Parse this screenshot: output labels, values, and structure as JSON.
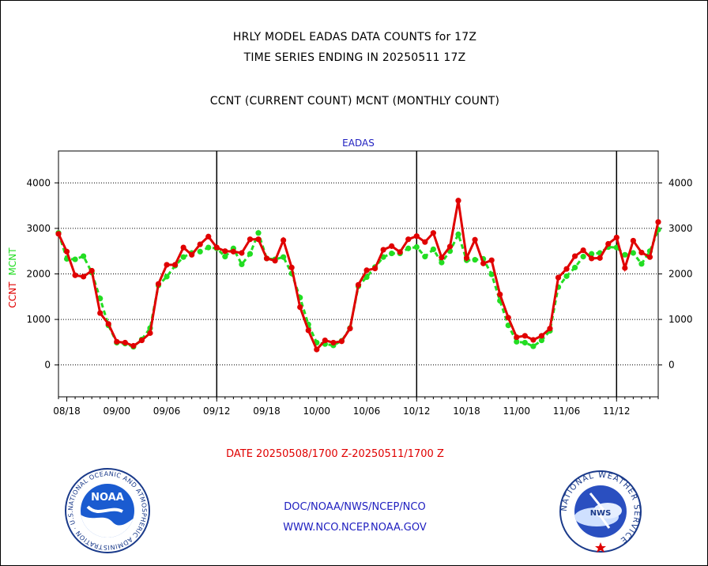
{
  "header": {
    "line1": "HRLY MODEL EADAS DATA COUNTS for 17Z",
    "line2": "TIME SERIES ENDING IN 20250511 17Z",
    "line3": "CCNT (CURRENT COUNT) MCNT (MONTHLY COUNT)"
  },
  "footer": {
    "date_range": "DATE 20250508/1700 Z-20250511/1700 Z",
    "link1": "DOC/NOAA/NWS/NCEP/NCO",
    "link2": "WWW.NCO.NCEP.NOAA.GOV"
  },
  "logos": {
    "left": {
      "name": "NOAA",
      "ring_text": "NATIONAL OCEANIC AND ATMOSPHERIC ADMINISTRATION · U.S. DEPARTMENT OF COMMERCE"
    },
    "right": {
      "name": "NWS",
      "ring_text": "NATIONAL WEATHER SERVICE"
    }
  },
  "colors": {
    "ccnt": "#e00000",
    "mcnt": "#22dd22",
    "title": "#2020c0",
    "axis": "#000000"
  },
  "chart_data": {
    "type": "line",
    "title": "EADAS",
    "ylabel_left": [
      "CCNT",
      "MCNT"
    ],
    "ylim": [
      -700,
      4700
    ],
    "yticks": [
      0,
      1000,
      2000,
      3000,
      4000
    ],
    "grid": true,
    "x_tick_labels": [
      "08/18",
      "09/00",
      "09/06",
      "09/12",
      "09/18",
      "10/00",
      "10/06",
      "10/12",
      "10/18",
      "11/00",
      "11/06",
      "11/12"
    ],
    "day_boundaries": [
      "09/12",
      "10/12",
      "11/12"
    ],
    "series": [
      {
        "name": "CCNT",
        "x": [
          "08/17",
          "08/18",
          "08/19",
          "08/20",
          "08/21",
          "08/22",
          "08/23",
          "08/00",
          "09/01",
          "09/02",
          "09/03",
          "09/04",
          "09/05",
          "09/06",
          "09/07",
          "09/08",
          "09/09",
          "09/10",
          "09/11",
          "09/12",
          "09/13",
          "09/14",
          "09/15",
          "09/16",
          "09/17",
          "09/18",
          "09/19",
          "09/20",
          "09/21",
          "09/22",
          "09/23",
          "10/00",
          "10/01",
          "10/02",
          "10/03",
          "10/04",
          "10/05",
          "10/06",
          "10/07",
          "10/08",
          "10/09",
          "10/10",
          "10/11",
          "10/12",
          "10/13",
          "10/14",
          "10/15",
          "10/16",
          "10/17",
          "10/18",
          "10/19",
          "10/20",
          "10/21",
          "10/22",
          "10/23",
          "11/00",
          "11/01",
          "11/02",
          "11/03",
          "11/04",
          "11/05",
          "11/06",
          "11/07",
          "11/08",
          "11/09",
          "11/10",
          "11/11",
          "11/12",
          "11/13",
          "11/14",
          "11/15",
          "11/16",
          "11/17"
        ],
        "values": [
          2880,
          2490,
          1970,
          1940,
          2070,
          1140,
          900,
          510,
          490,
          420,
          540,
          700,
          1780,
          2200,
          2200,
          2580,
          2420,
          2650,
          2820,
          2580,
          2500,
          2490,
          2460,
          2760,
          2760,
          2340,
          2290,
          2740,
          2140,
          1270,
          760,
          340,
          540,
          490,
          520,
          800,
          1760,
          2080,
          2120,
          2530,
          2610,
          2480,
          2760,
          2830,
          2700,
          2900,
          2360,
          2600,
          3610,
          2350,
          2750,
          2230,
          2300,
          1550,
          1040,
          610,
          640,
          550,
          640,
          800,
          1920,
          2110,
          2390,
          2520,
          2340,
          2350,
          2660,
          2800,
          2130,
          2730,
          2470,
          2370,
          3140
        ]
      },
      {
        "name": "MCNT",
        "x": [
          "08/17",
          "08/18",
          "08/19",
          "08/20",
          "08/21",
          "08/22",
          "08/23",
          "08/00",
          "09/01",
          "09/02",
          "09/03",
          "09/04",
          "09/05",
          "09/06",
          "09/07",
          "09/08",
          "09/09",
          "09/10",
          "09/11",
          "09/12",
          "09/13",
          "09/14",
          "09/15",
          "09/16",
          "09/17",
          "09/18",
          "09/19",
          "09/20",
          "09/21",
          "09/22",
          "09/23",
          "10/00",
          "10/01",
          "10/02",
          "10/03",
          "10/04",
          "10/05",
          "10/06",
          "10/07",
          "10/08",
          "10/09",
          "10/10",
          "10/11",
          "10/12",
          "10/13",
          "10/14",
          "10/15",
          "10/16",
          "10/17",
          "10/18",
          "10/19",
          "10/20",
          "10/21",
          "10/22",
          "10/23",
          "11/00",
          "11/01",
          "11/02",
          "11/03",
          "11/04",
          "11/05",
          "11/06",
          "11/07",
          "11/08",
          "11/09",
          "11/10",
          "11/11",
          "11/12",
          "11/13",
          "11/14",
          "11/15",
          "11/16",
          "11/17"
        ],
        "values": [
          2900,
          2330,
          2320,
          2390,
          2030,
          1460,
          870,
          490,
          470,
          400,
          560,
          810,
          1750,
          1940,
          2180,
          2370,
          2460,
          2490,
          2580,
          2560,
          2380,
          2560,
          2210,
          2440,
          2900,
          2340,
          2320,
          2370,
          2010,
          1480,
          890,
          490,
          460,
          430,
          530,
          810,
          1730,
          1930,
          2150,
          2370,
          2450,
          2450,
          2560,
          2590,
          2380,
          2540,
          2250,
          2500,
          2870,
          2300,
          2310,
          2330,
          1990,
          1410,
          870,
          510,
          490,
          410,
          540,
          750,
          1710,
          1950,
          2140,
          2380,
          2440,
          2460,
          2590,
          2580,
          2420,
          2460,
          2220,
          2500,
          2970
        ]
      }
    ]
  }
}
